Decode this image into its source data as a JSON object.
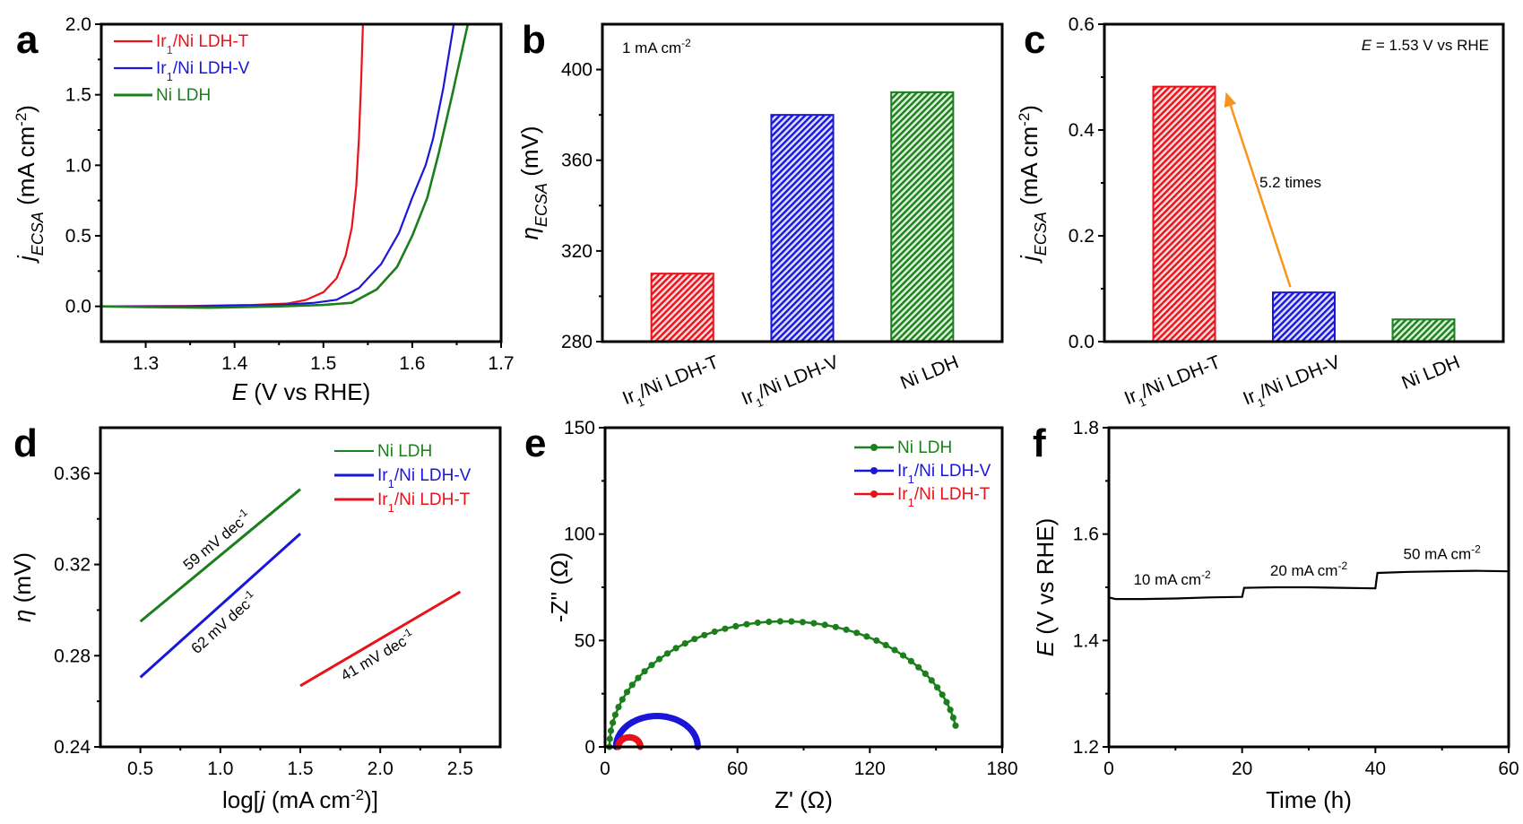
{
  "figure": {
    "panels": [
      "a",
      "b",
      "c",
      "d",
      "e",
      "f"
    ]
  },
  "colors": {
    "T": "#e8121b",
    "V": "#1a16d9",
    "Ni": "#1b7f1b",
    "arrow": "#f7941d",
    "axis": "#000000"
  },
  "chart_data": [
    {
      "id": "a",
      "type": "line",
      "panel_label": "a",
      "title": "",
      "xlabel_italic": "E",
      "xlabel_rest": " (V vs RHE)",
      "ylabel_italic": "j",
      "ylabel_sub": "ECSA",
      "ylabel_rest": " (mA cm",
      "ylabel_sup": "-2",
      "ylabel_close": ")",
      "xlim": [
        1.25,
        1.7
      ],
      "ylim": [
        -0.25,
        2.0
      ],
      "xticks": [
        1.3,
        1.4,
        1.5,
        1.6,
        1.7
      ],
      "xtick_labels": [
        "1.3",
        "1.4",
        "1.5",
        "1.6",
        "1.7"
      ],
      "yticks": [
        0.0,
        0.5,
        1.0,
        1.5,
        2.0
      ],
      "ytick_labels": [
        "0.0",
        "0.5",
        "1.0",
        "1.5",
        "2.0"
      ],
      "legend_position": "top-left",
      "series": [
        {
          "key": "T",
          "name_pre": "Ir",
          "name_sub": "1",
          "name_post": "/Ni LDH-T",
          "x": [
            1.25,
            1.35,
            1.42,
            1.46,
            1.48,
            1.5,
            1.515,
            1.525,
            1.532,
            1.537,
            1.54,
            1.5425,
            1.5445
          ],
          "y": [
            0.0,
            0.003,
            0.01,
            0.02,
            0.045,
            0.1,
            0.2,
            0.36,
            0.56,
            0.85,
            1.19,
            1.6,
            2.0
          ]
        },
        {
          "key": "V",
          "name_pre": "Ir",
          "name_sub": "1",
          "name_post": "/Ni LDH-V",
          "x": [
            1.25,
            1.35,
            1.45,
            1.49,
            1.515,
            1.54,
            1.565,
            1.585,
            1.6,
            1.615,
            1.6235,
            1.635,
            1.6467
          ],
          "y": [
            0.0,
            0.0,
            0.01,
            0.025,
            0.047,
            0.13,
            0.3,
            0.52,
            0.77,
            1.0,
            1.19,
            1.55,
            2.0
          ]
        },
        {
          "key": "Ni",
          "name_pre": "Ni LDH",
          "name_sub": "",
          "name_post": "",
          "x": [
            1.25,
            1.3,
            1.37,
            1.45,
            1.5,
            1.532,
            1.56,
            1.583,
            1.6,
            1.617,
            1.63,
            1.645,
            1.6626
          ],
          "y": [
            0.0,
            -0.005,
            -0.01,
            0.0,
            0.01,
            0.025,
            0.12,
            0.28,
            0.5,
            0.77,
            1.09,
            1.5,
            2.0
          ]
        }
      ]
    },
    {
      "id": "b",
      "type": "bar",
      "panel_label": "b",
      "annotation_main": "1 mA cm",
      "annotation_sup": "-2",
      "ylabel_italic": "η",
      "ylabel_sub": "ECSA",
      "ylabel_rest": " (mV)",
      "ylim": [
        280,
        420
      ],
      "yticks": [
        280,
        320,
        360,
        400
      ],
      "ytick_labels": [
        "280",
        "320",
        "360",
        "400"
      ],
      "categories": [
        {
          "key": "T",
          "pre": "Ir",
          "sub": "1",
          "post": "/Ni LDH-T"
        },
        {
          "key": "V",
          "pre": "Ir",
          "sub": "1",
          "post": "/Ni LDH-V"
        },
        {
          "key": "Ni",
          "pre": "Ni LDH",
          "sub": "",
          "post": ""
        }
      ],
      "values": [
        310,
        380,
        390
      ]
    },
    {
      "id": "c",
      "type": "bar",
      "panel_label": "c",
      "annotation_italic": "E",
      "annotation_rest": " = 1.53 V vs RHE",
      "arrow_label": "5.2 times",
      "ylabel_italic": "j",
      "ylabel_sub": "ECSA",
      "ylabel_rest": " (mA cm",
      "ylabel_sup": "-2",
      "ylabel_close": ")",
      "ylim": [
        0.0,
        0.6
      ],
      "yticks": [
        0.0,
        0.2,
        0.4,
        0.6
      ],
      "ytick_labels": [
        "0.0",
        "0.2",
        "0.4",
        "0.6"
      ],
      "categories": [
        {
          "key": "T",
          "pre": "Ir",
          "sub": "1",
          "post": "/Ni LDH-T"
        },
        {
          "key": "V",
          "pre": "Ir",
          "sub": "1",
          "post": "/Ni LDH-V"
        },
        {
          "key": "Ni",
          "pre": "Ni LDH",
          "sub": "",
          "post": ""
        }
      ],
      "values": [
        0.482,
        0.093,
        0.042
      ]
    },
    {
      "id": "d",
      "type": "line",
      "panel_label": "d",
      "xlabel": "log[j (mA cm-2)]",
      "xlabel_pre": "log[",
      "xlabel_italic": "j",
      "xlabel_mid": " (mA cm",
      "xlabel_sup": "-2",
      "xlabel_close": ")]",
      "ylabel_italic": "η",
      "ylabel_rest": " (mV)",
      "xlim": [
        0.25,
        2.75
      ],
      "ylim": [
        0.24,
        0.38
      ],
      "xticks": [
        0.5,
        1.0,
        1.5,
        2.0,
        2.5
      ],
      "xtick_labels": [
        "0.5",
        "1.0",
        "1.5",
        "2.0",
        "2.5"
      ],
      "yticks": [
        0.24,
        0.28,
        0.32,
        0.36
      ],
      "ytick_labels": [
        "0.24",
        "0.28",
        "0.32",
        "0.36"
      ],
      "legend_position": "top-right",
      "series": [
        {
          "key": "Ni",
          "name_pre": "Ni LDH",
          "name_sub": "",
          "name_post": "",
          "x": [
            0.5,
            1.5
          ],
          "y": [
            0.295,
            0.353
          ],
          "slope_label": "59 mV  dec",
          "slope_sup": "-1"
        },
        {
          "key": "V",
          "name_pre": "Ir",
          "name_sub": "1",
          "name_post": "/Ni LDH-V",
          "x": [
            0.5,
            1.5
          ],
          "y": [
            0.2705,
            0.3335
          ],
          "slope_label": "62 mV dec",
          "slope_sup": "-1"
        },
        {
          "key": "T",
          "name_pre": "Ir",
          "name_sub": "1",
          "name_post": "/Ni LDH-T",
          "x": [
            1.5,
            2.5
          ],
          "y": [
            0.2668,
            0.308
          ],
          "slope_label": "41 mV dec",
          "slope_sup": "-1"
        }
      ]
    },
    {
      "id": "e",
      "type": "scatter",
      "panel_label": "e",
      "xlabel": "Z' (Ω)",
      "ylabel": "-Z'' (Ω)",
      "xlim": [
        0,
        180
      ],
      "ylim": [
        0,
        150
      ],
      "xticks": [
        0,
        60,
        120,
        180
      ],
      "xtick_labels": [
        "0",
        "60",
        "120",
        "180"
      ],
      "yticks": [
        0,
        50,
        100,
        150
      ],
      "ytick_labels": [
        "0",
        "50",
        "100",
        "150"
      ],
      "legend_position": "top-right",
      "series": [
        {
          "key": "Ni",
          "name_pre": "Ni LDH",
          "name_sub": "",
          "name_post": "",
          "arc": {
            "start": 2,
            "end": 160,
            "peak": 59,
            "tail_end_y": 10,
            "points": 46
          }
        },
        {
          "key": "V",
          "name_pre": "Ir",
          "name_sub": "1",
          "name_post": "/Ni LDH-V",
          "arc": {
            "start": 5,
            "end": 42,
            "peak": 14.5,
            "tail_end_y": 0,
            "points": 70
          }
        },
        {
          "key": "T",
          "name_pre": "Ir",
          "name_sub": "1",
          "name_post": "/Ni LDH-T",
          "arc": {
            "start": 6,
            "end": 16,
            "peak": 4.5,
            "tail_end_y": 0,
            "points": 40
          }
        }
      ]
    },
    {
      "id": "f",
      "type": "line",
      "panel_label": "f",
      "xlabel": "Time (h)",
      "ylabel_italic": "E",
      "ylabel_rest": " (V vs RHE)",
      "xlim": [
        0,
        60
      ],
      "ylim": [
        1.2,
        1.8
      ],
      "xticks": [
        0,
        20,
        40,
        60
      ],
      "xtick_labels": [
        "0",
        "20",
        "40",
        "60"
      ],
      "yticks": [
        1.2,
        1.4,
        1.6,
        1.8
      ],
      "ytick_labels": [
        "1.2",
        "1.4",
        "1.6",
        "1.8"
      ],
      "series": [
        {
          "key": "stability",
          "x": [
            0,
            1,
            5,
            10,
            15,
            19.9,
            20.0,
            20.3,
            25,
            30,
            35,
            39.9,
            40.0,
            40.3,
            45,
            50,
            55,
            60
          ],
          "y": [
            1.481,
            1.478,
            1.478,
            1.479,
            1.481,
            1.482,
            1.482,
            1.499,
            1.5,
            1.5,
            1.499,
            1.498,
            1.498,
            1.527,
            1.529,
            1.53,
            1.531,
            1.53
          ]
        }
      ],
      "segment_labels": [
        {
          "text": "10 mA cm",
          "sup": "-2",
          "x": 9.5,
          "y": 1.505
        },
        {
          "text": "20 mA cm",
          "sup": "-2",
          "x": 30,
          "y": 1.522
        },
        {
          "text": "50 mA cm",
          "sup": "-2",
          "x": 50,
          "y": 1.553
        }
      ]
    }
  ]
}
